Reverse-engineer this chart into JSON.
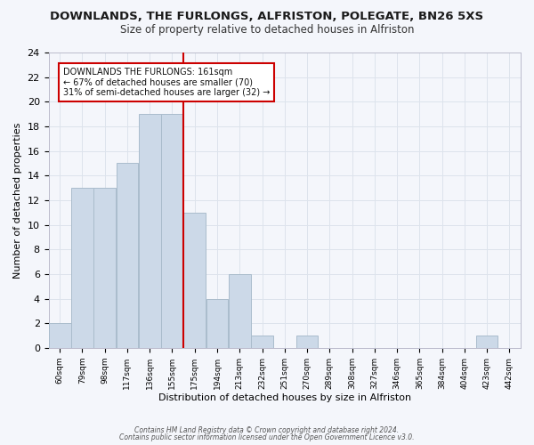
{
  "title": "DOWNLANDS, THE FURLONGS, ALFRISTON, POLEGATE, BN26 5XS",
  "subtitle": "Size of property relative to detached houses in Alfriston",
  "xlabel": "Distribution of detached houses by size in Alfriston",
  "ylabel": "Number of detached properties",
  "bar_labels": [
    "60sqm",
    "79sqm",
    "98sqm",
    "117sqm",
    "136sqm",
    "155sqm",
    "175sqm",
    "194sqm",
    "213sqm",
    "232sqm",
    "251sqm",
    "270sqm",
    "289sqm",
    "308sqm",
    "327sqm",
    "346sqm",
    "365sqm",
    "384sqm",
    "404sqm",
    "423sqm",
    "442sqm"
  ],
  "bar_values": [
    2,
    13,
    13,
    15,
    19,
    19,
    11,
    4,
    6,
    1,
    0,
    1,
    0,
    0,
    0,
    0,
    0,
    0,
    0,
    1,
    0
  ],
  "bar_color": "#ccd9e8",
  "bar_edge_color": "#aabccc",
  "property_line_x": 5,
  "annotation_title": "DOWNLANDS THE FURLONGS: 161sqm",
  "annotation_line1": "← 67% of detached houses are smaller (70)",
  "annotation_line2": "31% of semi-detached houses are larger (32) →",
  "annotation_box_color": "#ffffff",
  "annotation_box_edge": "#cc0000",
  "vline_color": "#cc0000",
  "ylim": [
    0,
    24
  ],
  "yticks": [
    0,
    2,
    4,
    6,
    8,
    10,
    12,
    14,
    16,
    18,
    20,
    22,
    24
  ],
  "grid_color": "#dde3ec",
  "footer1": "Contains HM Land Registry data © Crown copyright and database right 2024.",
  "footer2": "Contains public sector information licensed under the Open Government Licence v3.0.",
  "bg_color": "#f4f6fb",
  "title_fontsize": 9.5,
  "subtitle_fontsize": 8.5
}
